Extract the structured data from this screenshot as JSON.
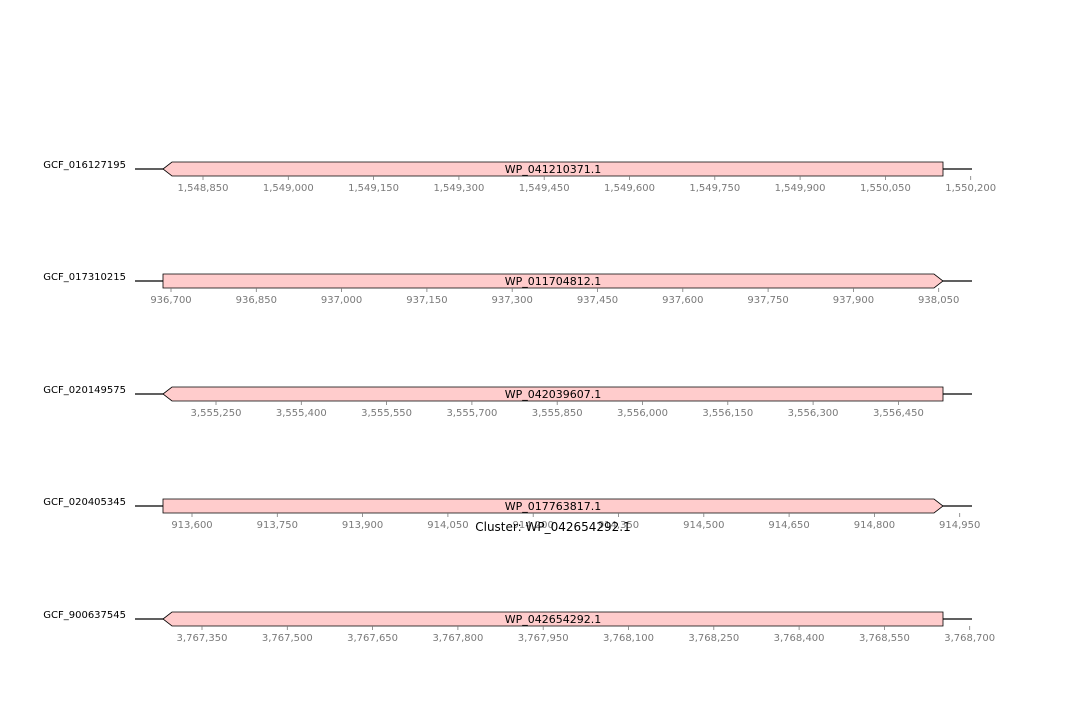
{
  "figure": {
    "title": "Cluster: WP_042654292.1"
  },
  "colors": {
    "gene_fill": "#ffcccc",
    "gene_stroke": "#000000",
    "backbone": "#000000",
    "tick": "#7a7a7a",
    "text": "#000000"
  },
  "tracks": [
    {
      "genome": "GCF_016127195",
      "gene": "WP_041210371.1",
      "strand": "-",
      "ticks": [
        "1,548,850",
        "1,549,000",
        "1,549,150",
        "1,549,300",
        "1,549,450",
        "1,549,600",
        "1,549,750",
        "1,549,900",
        "1,550,050",
        "1,550,200"
      ]
    },
    {
      "genome": "GCF_017310215",
      "gene": "WP_011704812.1",
      "strand": "+",
      "ticks": [
        "936,700",
        "936,850",
        "937,000",
        "937,150",
        "937,300",
        "937,450",
        "937,600",
        "937,750",
        "937,900",
        "938,050"
      ]
    },
    {
      "genome": "GCF_020149575",
      "gene": "WP_042039607.1",
      "strand": "-",
      "ticks": [
        "3,555,250",
        "3,555,400",
        "3,555,550",
        "3,555,700",
        "3,555,850",
        "3,556,000",
        "3,556,150",
        "3,556,300",
        "3,556,450"
      ]
    },
    {
      "genome": "GCF_020405345",
      "gene": "WP_017763817.1",
      "strand": "+",
      "ticks": [
        "913,600",
        "913,750",
        "913,900",
        "914,050",
        "914,200",
        "914,350",
        "914,500",
        "914,650",
        "914,800",
        "914,950"
      ]
    },
    {
      "genome": "GCF_900637545",
      "gene": "WP_042654292.1",
      "strand": "-",
      "ticks": [
        "3,767,350",
        "3,767,500",
        "3,767,650",
        "3,767,800",
        "3,767,950",
        "3,768,100",
        "3,768,250",
        "3,768,400",
        "3,768,550",
        "3,768,700"
      ]
    }
  ]
}
